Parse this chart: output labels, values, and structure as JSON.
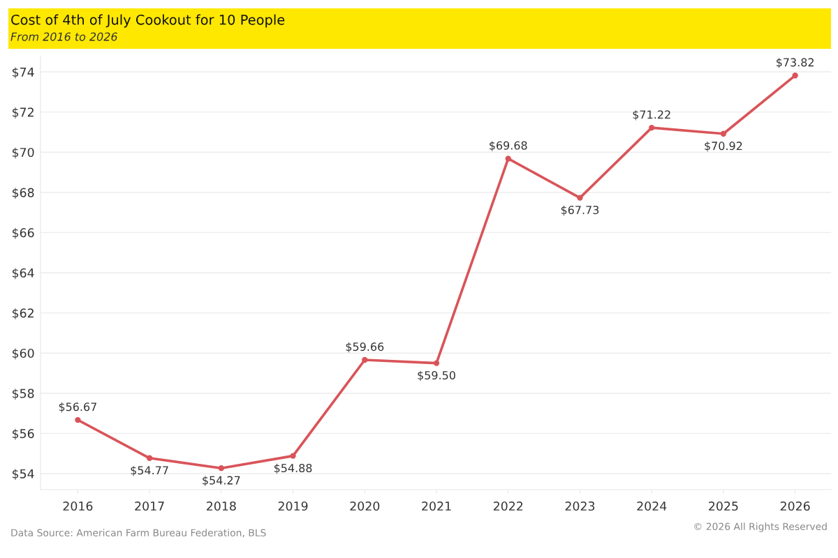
{
  "chart_data": {
    "type": "line",
    "title": "Cost of 4th of July Cookout for 10 People",
    "subtitle": "From 2016 to 2026",
    "categories": [
      "2016",
      "2017",
      "2018",
      "2019",
      "2020",
      "2021",
      "2022",
      "2023",
      "2024",
      "2025",
      "2026"
    ],
    "values": [
      56.67,
      54.77,
      54.27,
      54.88,
      59.66,
      59.5,
      69.68,
      67.73,
      71.22,
      70.92,
      73.82
    ],
    "value_labels": [
      "$56.67",
      "$54.77",
      "$54.27",
      "$54.88",
      "$59.66",
      "$59.50",
      "$69.68",
      "$67.73",
      "$71.22",
      "$70.92",
      "$73.82"
    ],
    "color": "#d95459",
    "marker": "circle",
    "line_style": "solid",
    "grid": "y",
    "ylim": [
      53.2,
      74.8
    ],
    "yticks": [
      {
        "value": 54,
        "label": "$54"
      },
      {
        "value": 56,
        "label": "$56"
      },
      {
        "value": 58,
        "label": "$58"
      },
      {
        "value": 60,
        "label": "$60"
      },
      {
        "value": 62,
        "label": "$62"
      },
      {
        "value": 64,
        "label": "$64"
      },
      {
        "value": 66,
        "label": "$66"
      },
      {
        "value": 68,
        "label": "$68"
      },
      {
        "value": 70,
        "label": "$70"
      },
      {
        "value": 72,
        "label": "$72"
      },
      {
        "value": 74,
        "label": "$74"
      }
    ],
    "annotations": [
      "Data Source: American Farm Bureau Federation, BLS",
      "© 2026 All Rights Reserved"
    ]
  }
}
